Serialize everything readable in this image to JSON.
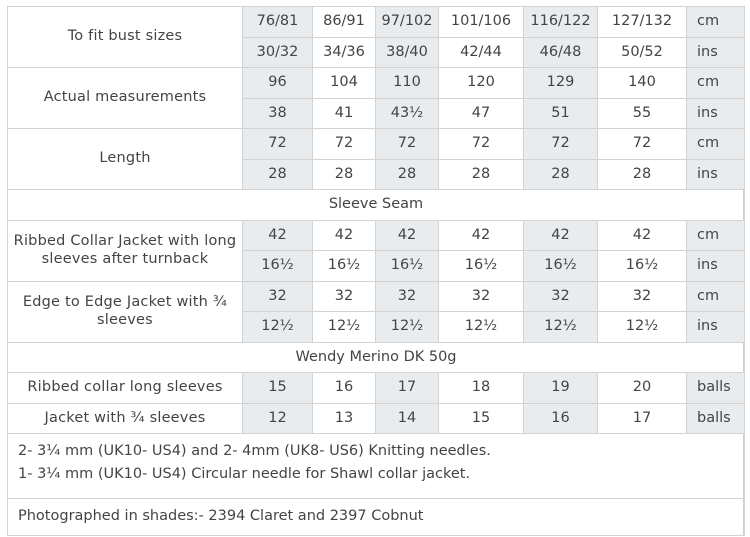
{
  "sizes": {
    "label": "To fit bust sizes",
    "cm": [
      "76/81",
      "86/91",
      "97/102",
      "101/106",
      "116/122",
      "127/132"
    ],
    "cm_unit": "cm",
    "ins": [
      "30/32",
      "34/36",
      "38/40",
      "42/44",
      "46/48",
      "50/52"
    ],
    "ins_unit": "ins"
  },
  "actual": {
    "label": "Actual measurements",
    "cm": [
      "96",
      "104",
      "110",
      "120",
      "129",
      "140"
    ],
    "cm_unit": "cm",
    "ins": [
      "38",
      "41",
      "43½",
      "47",
      "51",
      "55"
    ],
    "ins_unit": "ins"
  },
  "length": {
    "label": "Length",
    "cm": [
      "72",
      "72",
      "72",
      "72",
      "72",
      "72"
    ],
    "cm_unit": "cm",
    "ins": [
      "28",
      "28",
      "28",
      "28",
      "28",
      "28"
    ],
    "ins_unit": "ins"
  },
  "sleeve_seam": {
    "heading": "Sleeve Seam"
  },
  "ribbed_jacket": {
    "label": "Ribbed Collar Jacket with long sleeves after turnback",
    "cm": [
      "42",
      "42",
      "42",
      "42",
      "42",
      "42"
    ],
    "cm_unit": "cm",
    "ins": [
      "16½",
      "16½",
      "16½",
      "16½",
      "16½",
      "16½"
    ],
    "ins_unit": "ins"
  },
  "edge_jacket": {
    "label": "Edge to Edge Jacket with ¾ sleeves",
    "cm": [
      "32",
      "32",
      "32",
      "32",
      "32",
      "32"
    ],
    "cm_unit": "cm",
    "ins": [
      "12½",
      "12½",
      "12½",
      "12½",
      "12½",
      "12½"
    ],
    "ins_unit": "ins"
  },
  "yarn": {
    "heading": "Wendy Merino DK 50g"
  },
  "ribbed_long": {
    "label": "Ribbed collar long sleeves",
    "balls": [
      "15",
      "16",
      "17",
      "18",
      "19",
      "20"
    ],
    "unit": "balls"
  },
  "jacket_three_quarter": {
    "label": "Jacket with ¾ sleeves",
    "balls": [
      "12",
      "13",
      "14",
      "15",
      "16",
      "17"
    ],
    "unit": "balls"
  },
  "needles": {
    "line1": "2- 3¼ mm (UK10- US4) and 2- 4mm (UK8- US6) Knitting needles.",
    "line2": "1- 3¼ mm (UK10- US4) Circular needle for Shawl collar jacket."
  },
  "photographed": "Photographed in shades:- 2394 Claret and 2397 Cobnut"
}
